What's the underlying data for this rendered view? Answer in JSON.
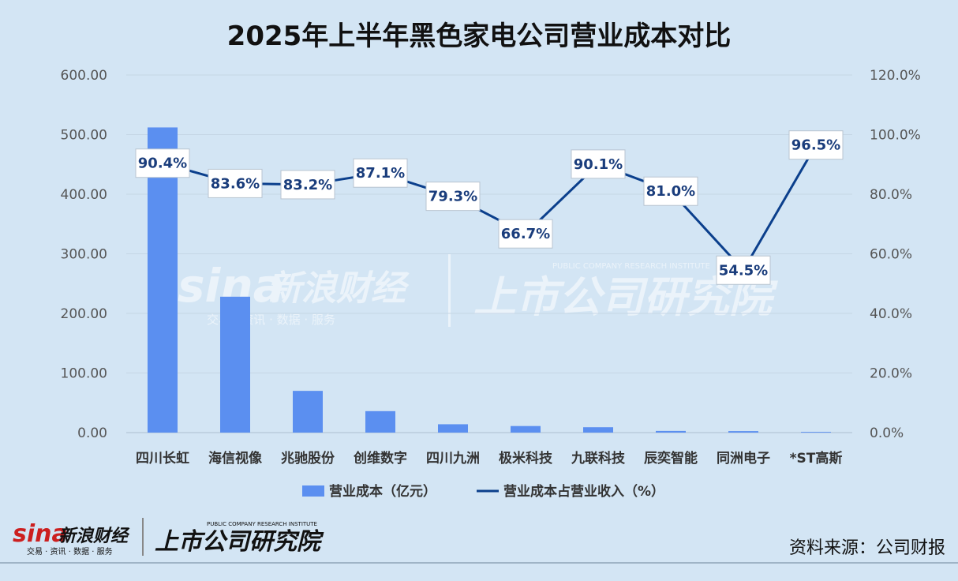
{
  "chart_data": {
    "type": "bar",
    "title": "2025年上半年黑色家电公司营业成本对比",
    "categories": [
      "四川长虹",
      "海信视像",
      "兆驰股份",
      "创维数字",
      "四川九洲",
      "极米科技",
      "九联科技",
      "辰奕智能",
      "同洲电子",
      "*ST高斯"
    ],
    "series": [
      {
        "name": "营业成本（亿元）",
        "type": "bar",
        "axis": "left",
        "color": "#5b8ff0",
        "values": [
          512,
          228,
          70,
          36,
          14,
          11,
          9,
          2.8,
          2.5,
          1.2
        ]
      },
      {
        "name": "营业成本占营业收入（%）",
        "type": "line",
        "axis": "right",
        "color": "#0b3f8c",
        "values": [
          90.4,
          83.6,
          83.2,
          87.1,
          79.3,
          66.7,
          90.1,
          81.0,
          54.5,
          96.5
        ],
        "labels": [
          "90.4%",
          "83.6%",
          "83.2%",
          "87.1%",
          "79.3%",
          "66.7%",
          "90.1%",
          "81.0%",
          "54.5%",
          "96.5%"
        ]
      }
    ],
    "y_left": {
      "min": 0,
      "max": 600,
      "ticks": [
        "0.00",
        "100.00",
        "200.00",
        "300.00",
        "400.00",
        "500.00",
        "600.00"
      ]
    },
    "y_right": {
      "min": 0,
      "max": 120,
      "ticks": [
        "0.0%",
        "20.0%",
        "40.0%",
        "60.0%",
        "80.0%",
        "100.0%",
        "120.0%"
      ]
    },
    "grid": true,
    "legend_position": "bottom"
  },
  "watermark": {
    "brand": "sina",
    "brand_cn": "新浪财经",
    "tagline": "交易 · 资讯 · 数据 · 服务",
    "institute": "上市公司研究院",
    "institute_en": "PUBLIC COMPANY RESEARCH INSTITUTE"
  },
  "source": "资料来源：公司财报"
}
